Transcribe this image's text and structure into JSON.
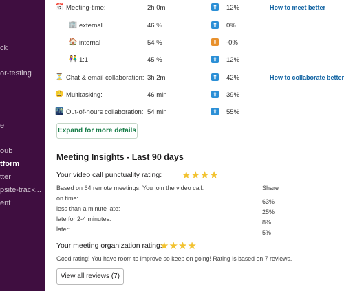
{
  "sidebar": {
    "items": [
      {
        "label": "ck",
        "active": false
      },
      {
        "label": "or-testing",
        "active": false
      },
      {
        "label": "e",
        "active": false
      },
      {
        "label": "oub",
        "active": false
      },
      {
        "label": "tform",
        "active": true
      },
      {
        "label": "tter",
        "active": false
      },
      {
        "label": "psite-track...",
        "active": false
      },
      {
        "label": "ent",
        "active": false
      }
    ]
  },
  "metrics": [
    {
      "icon": "calendar-icon",
      "glyph": "📅",
      "label": "Meeting-time:",
      "value": "2h 0m",
      "trend": "up",
      "trend_glyph": "⬆",
      "pct": "12%",
      "link": "How to meet better"
    },
    {
      "icon": "building-icon",
      "glyph": "🏢",
      "label": "external",
      "value": "46 %",
      "trend": "up",
      "trend_glyph": "⬆",
      "pct": "0%",
      "link": ""
    },
    {
      "icon": "house-icon",
      "glyph": "🏠",
      "label": "internal",
      "value": "54 %",
      "trend": "down",
      "trend_glyph": "⬇",
      "pct": "-0%",
      "link": ""
    },
    {
      "icon": "people-icon",
      "glyph": "👫",
      "label": "1:1",
      "value": "45 %",
      "trend": "up",
      "trend_glyph": "⬆",
      "pct": "12%",
      "link": ""
    },
    {
      "icon": "hourglass-icon",
      "glyph": "⏳",
      "label": "Chat & email collaboration:",
      "value": "3h 2m",
      "trend": "up",
      "trend_glyph": "⬆",
      "pct": "42%",
      "link": "How to collaborate better"
    },
    {
      "icon": "exhausted-face-icon",
      "glyph": "😩",
      "label": "Multitasking:",
      "value": "46 min",
      "trend": "up",
      "trend_glyph": "⬆",
      "pct": "39%",
      "link": ""
    },
    {
      "icon": "city-night-icon",
      "glyph": "🌃",
      "label": "Out-of-hours collaboration:",
      "value": "54 min",
      "trend": "up",
      "trend_glyph": "⬆",
      "pct": "55%",
      "link": ""
    }
  ],
  "expand_label": "Expand for more details",
  "insights": {
    "title": "Meeting Insights - Last 90 days",
    "punctuality_label": "Your video call punctuality rating:",
    "punctuality_stars": "★★★★",
    "based_on": "Based on 64 remote meetings. You join the video call:",
    "share_header": "Share",
    "rows": [
      {
        "label": "on time:",
        "share": "63%"
      },
      {
        "label": "less than a minute late:",
        "share": "25%"
      },
      {
        "label": "late for 2-4 minutes:",
        "share": "8%"
      },
      {
        "label": "later:",
        "share": "5%"
      }
    ],
    "organization_label": "Your meeting organization rating:",
    "organization_stars": "★★★★",
    "note": "Good rating! You have room to improve so keep on going! Rating is based on 7 reviews.",
    "reviews_button": "View all reviews (7)"
  },
  "colors": {
    "sidebar_bg": "#3f0e40",
    "link": "#1264a3",
    "trend_up": "#2b8fd6",
    "trend_down": "#e8912d",
    "expand_text": "#1a7f4a",
    "star": "#f2c230"
  }
}
